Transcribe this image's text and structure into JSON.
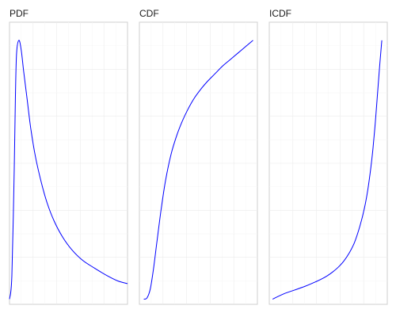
{
  "chart_data": [
    {
      "type": "line",
      "title": "PDF",
      "xlabel": "",
      "ylabel": "",
      "grid": true,
      "line_color": "#0000ff",
      "x": [
        0.0,
        0.02,
        0.04,
        0.05,
        0.06,
        0.08,
        0.1,
        0.12,
        0.15,
        0.18,
        0.22,
        0.27,
        0.32,
        0.38,
        0.45,
        0.53,
        0.62,
        0.72,
        0.83,
        0.92,
        1.0
      ],
      "y": [
        0.0,
        0.09,
        0.5,
        0.78,
        0.95,
        1.0,
        0.96,
        0.88,
        0.77,
        0.66,
        0.55,
        0.45,
        0.37,
        0.3,
        0.24,
        0.19,
        0.15,
        0.12,
        0.09,
        0.07,
        0.06
      ],
      "xlim": [
        0,
        1
      ],
      "ylim": [
        -0.02,
        1.07
      ]
    },
    {
      "type": "line",
      "title": "CDF",
      "xlabel": "",
      "ylabel": "",
      "grid": true,
      "line_color": "#0000ff",
      "x": [
        0.0,
        0.03,
        0.06,
        0.09,
        0.12,
        0.16,
        0.2,
        0.25,
        0.3,
        0.35,
        0.4,
        0.46,
        0.52,
        0.58,
        0.65,
        0.72,
        0.79,
        0.86,
        0.93,
        1.0
      ],
      "y": [
        0.0,
        0.005,
        0.04,
        0.12,
        0.22,
        0.35,
        0.46,
        0.56,
        0.63,
        0.685,
        0.73,
        0.775,
        0.81,
        0.84,
        0.87,
        0.9,
        0.925,
        0.95,
        0.975,
        1.0
      ],
      "xlim": [
        -0.04,
        1.04
      ],
      "ylim": [
        -0.02,
        1.07
      ]
    },
    {
      "type": "line",
      "title": "ICDF",
      "xlabel": "",
      "ylabel": "",
      "grid": true,
      "line_color": "#0000ff",
      "x": [
        0.0,
        0.1,
        0.2,
        0.3,
        0.4,
        0.45,
        0.5,
        0.55,
        0.6,
        0.65,
        0.7,
        0.75,
        0.8,
        0.84,
        0.87,
        0.9,
        0.92,
        0.94,
        0.96,
        0.98,
        1.0
      ],
      "y": [
        0.0,
        0.02,
        0.035,
        0.05,
        0.068,
        0.078,
        0.09,
        0.105,
        0.123,
        0.146,
        0.177,
        0.219,
        0.283,
        0.35,
        0.418,
        0.51,
        0.586,
        0.68,
        0.79,
        0.9,
        1.0
      ],
      "xlim": [
        -0.03,
        1.05
      ],
      "ylim": [
        -0.02,
        1.07
      ]
    }
  ]
}
